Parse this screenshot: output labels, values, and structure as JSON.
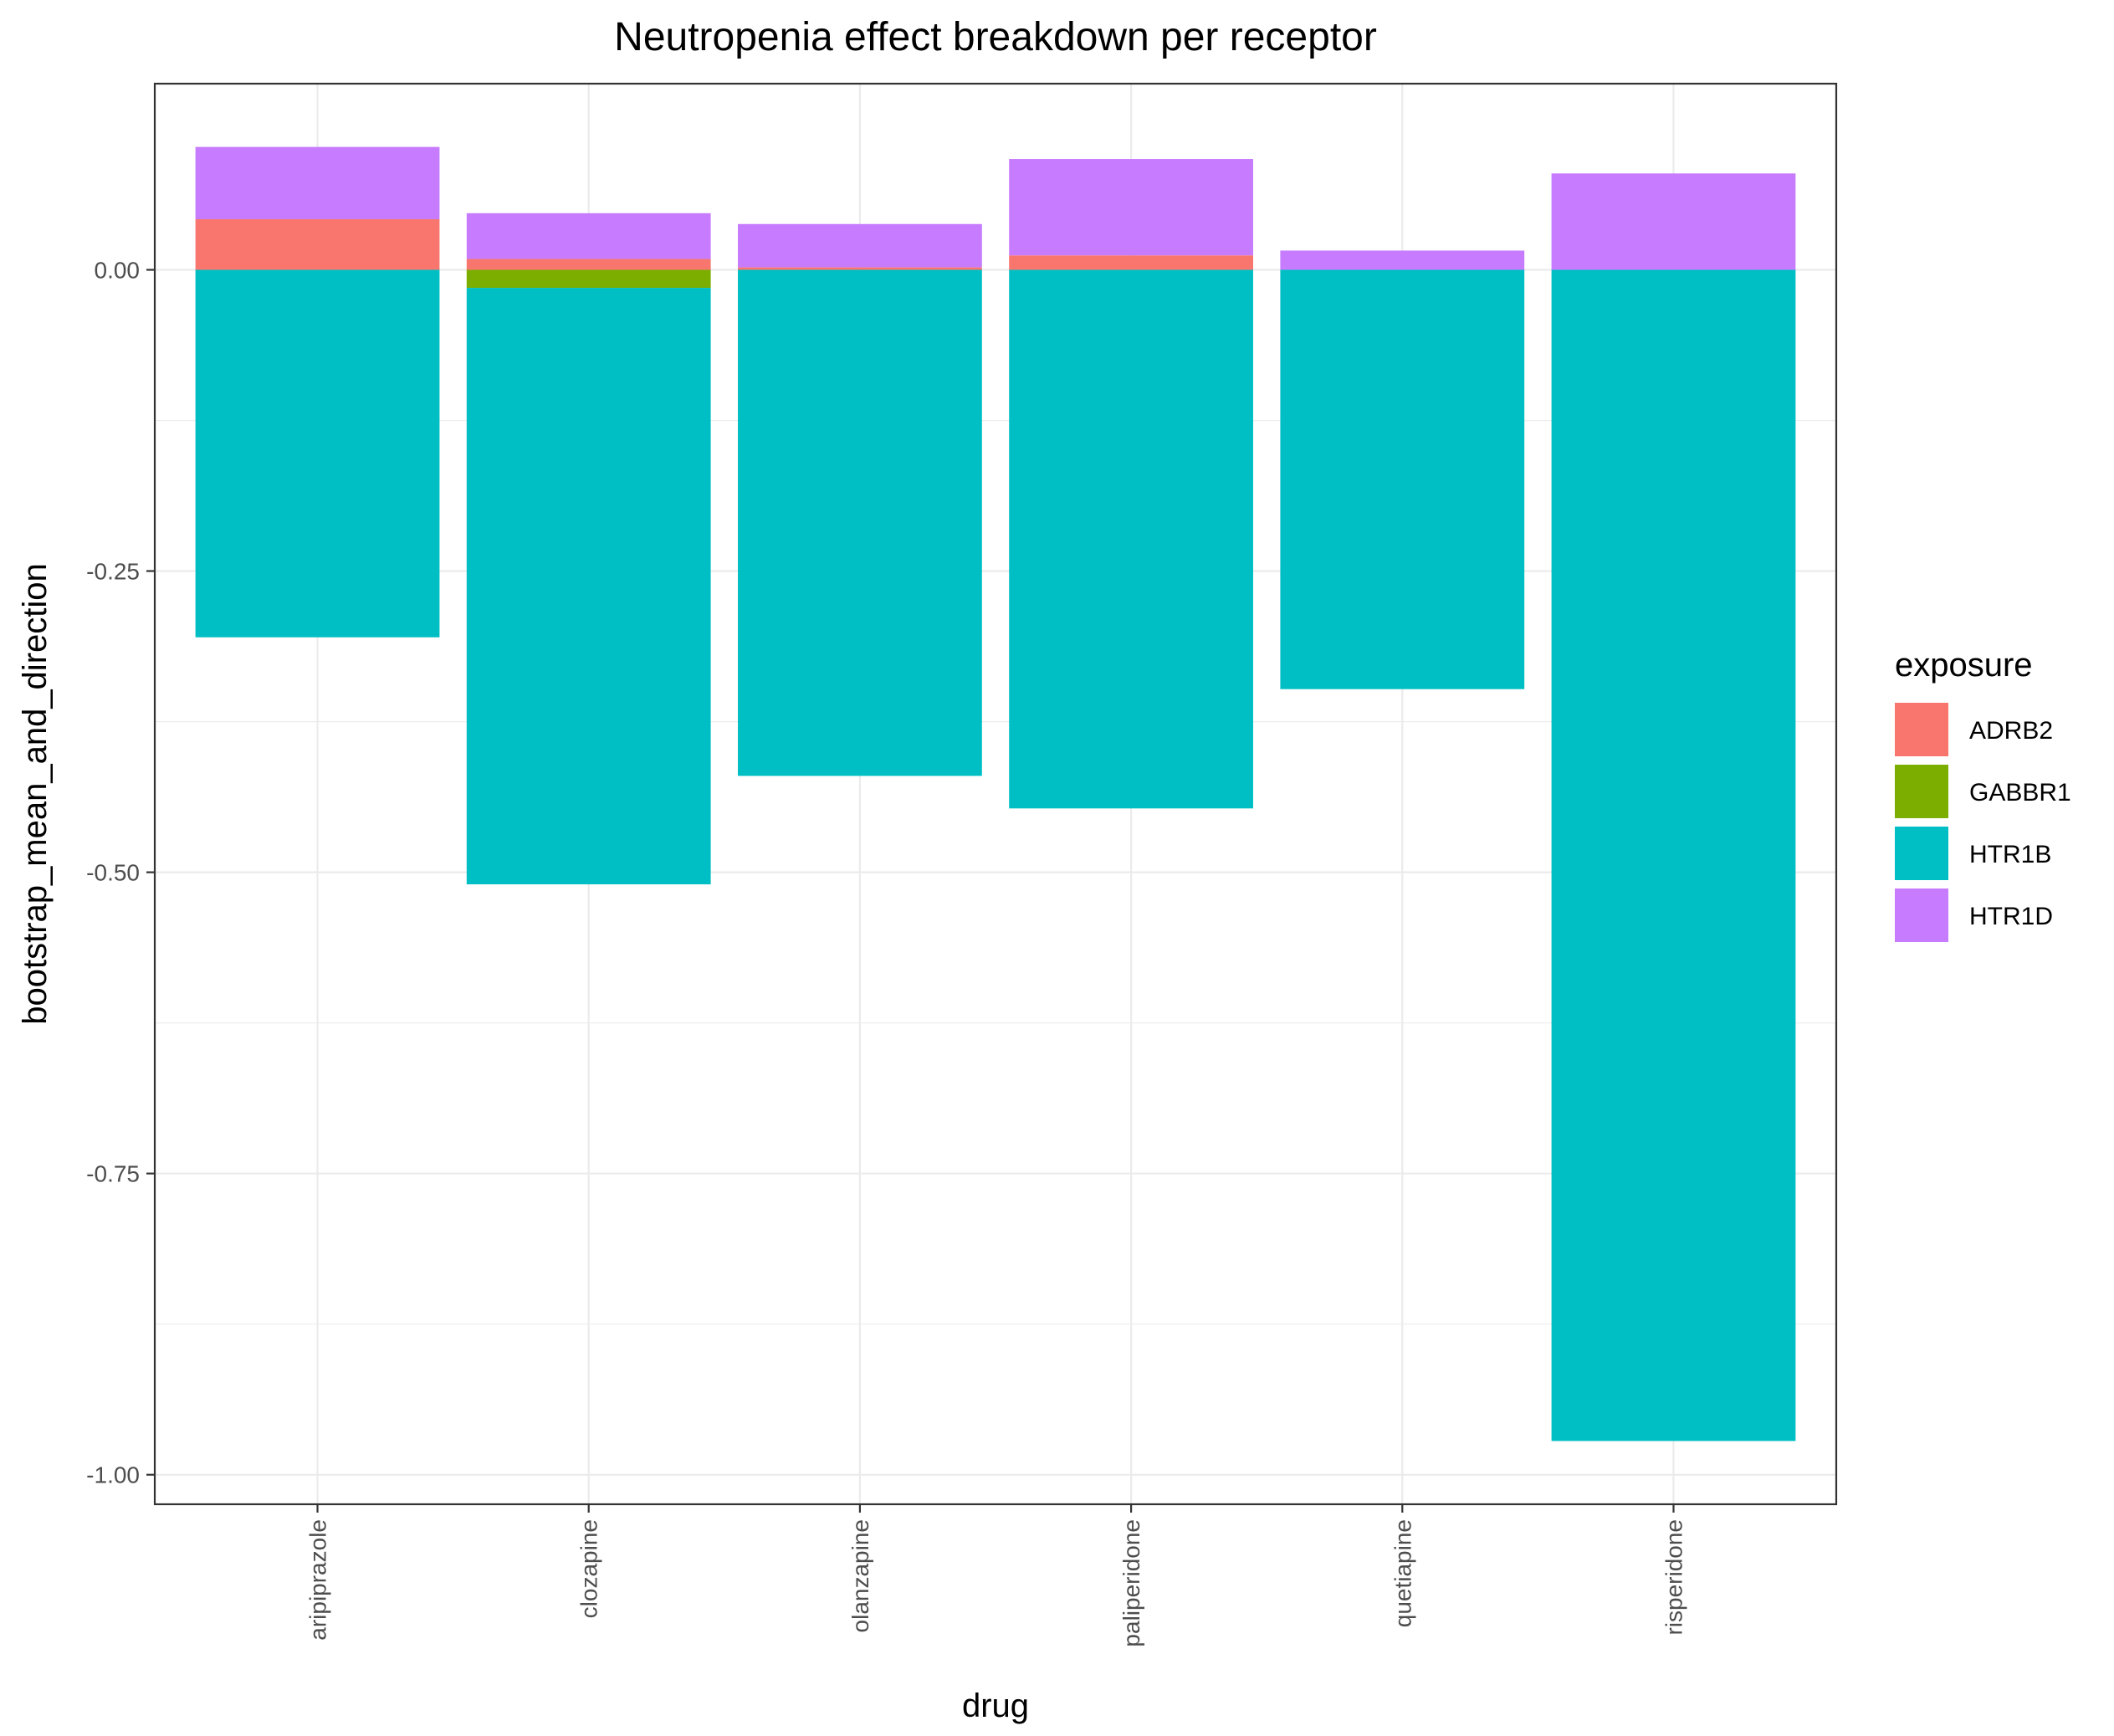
{
  "chart_data": {
    "type": "bar",
    "stacked": true,
    "title": "Neutropenia effect breakdown per receptor",
    "xlabel": "drug",
    "ylabel": "bootstrap_mean_and_direction",
    "categories": [
      "aripiprazole",
      "clozapine",
      "olanzapine",
      "paliperidone",
      "quetiapine",
      "risperidone"
    ],
    "ylim": [
      -1.0,
      0.1
    ],
    "yticks": [
      0.0,
      -0.25,
      -0.5,
      -0.75,
      -1.0
    ],
    "ytick_labels": [
      "0.00",
      "-0.25",
      "-0.50",
      "-0.75",
      "-1.00"
    ],
    "grid": true,
    "legend": {
      "title": "exposure",
      "position": "right"
    },
    "series": [
      {
        "name": "ADRB2",
        "color": "#F8766D",
        "values": [
          0.042,
          0.009,
          0.002,
          0.012,
          0.0,
          0.0
        ]
      },
      {
        "name": "GABBR1",
        "color": "#7CAE00",
        "values": [
          0.0,
          -0.015,
          0.0,
          0.0,
          0.0,
          0.0
        ]
      },
      {
        "name": "HTR1B",
        "color": "#00BFC4",
        "values": [
          -0.305,
          -0.495,
          -0.42,
          -0.447,
          -0.348,
          -0.972
        ]
      },
      {
        "name": "HTR1D",
        "color": "#C77CFF",
        "values": [
          0.06,
          0.038,
          0.036,
          0.08,
          0.016,
          0.08
        ]
      }
    ]
  }
}
